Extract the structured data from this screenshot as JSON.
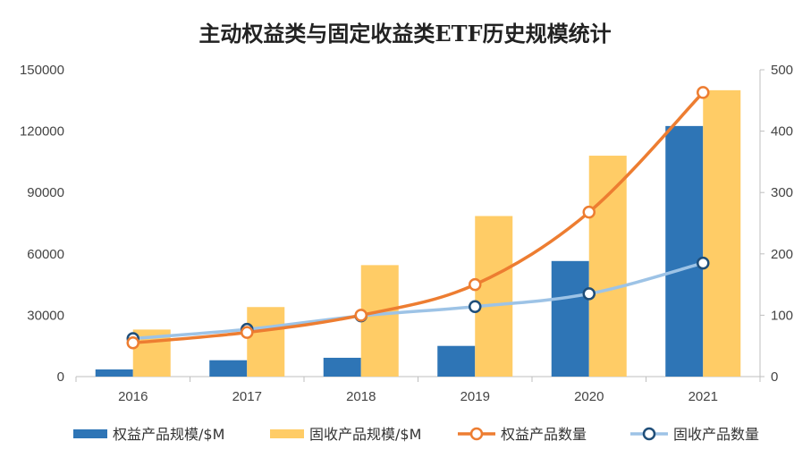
{
  "chart_data": {
    "type": "bar",
    "title": "主动权益类与固定收益类ETF历史规模统计",
    "categories": [
      "2016",
      "2017",
      "2018",
      "2019",
      "2020",
      "2021"
    ],
    "y_left": {
      "ylim": [
        0,
        150000
      ],
      "ticks": [
        "0",
        "30000",
        "60000",
        "90000",
        "120000",
        "150000"
      ]
    },
    "y_right": {
      "ylim": [
        0,
        500
      ],
      "ticks": [
        "0",
        "100",
        "200",
        "300",
        "400",
        "500"
      ]
    },
    "bar_series": [
      {
        "name": "权益产品规模/$M",
        "color": "#2e75b6",
        "values": [
          3500,
          8000,
          9200,
          15000,
          56500,
          122500
        ]
      },
      {
        "name": "固收产品规模/$M",
        "color": "#ffcc66",
        "values": [
          23000,
          34000,
          54500,
          78500,
          108000,
          140000
        ]
      }
    ],
    "line_series": [
      {
        "name": "权益产品数量",
        "color": "#ed7d31",
        "axis": "right",
        "values": [
          55,
          72,
          100,
          150,
          268,
          463
        ]
      },
      {
        "name": "固收产品数量",
        "color": "#9dc3e6",
        "axis": "right",
        "values": [
          62,
          77,
          99,
          114,
          135,
          185
        ]
      }
    ],
    "legend_position": "bottom"
  }
}
